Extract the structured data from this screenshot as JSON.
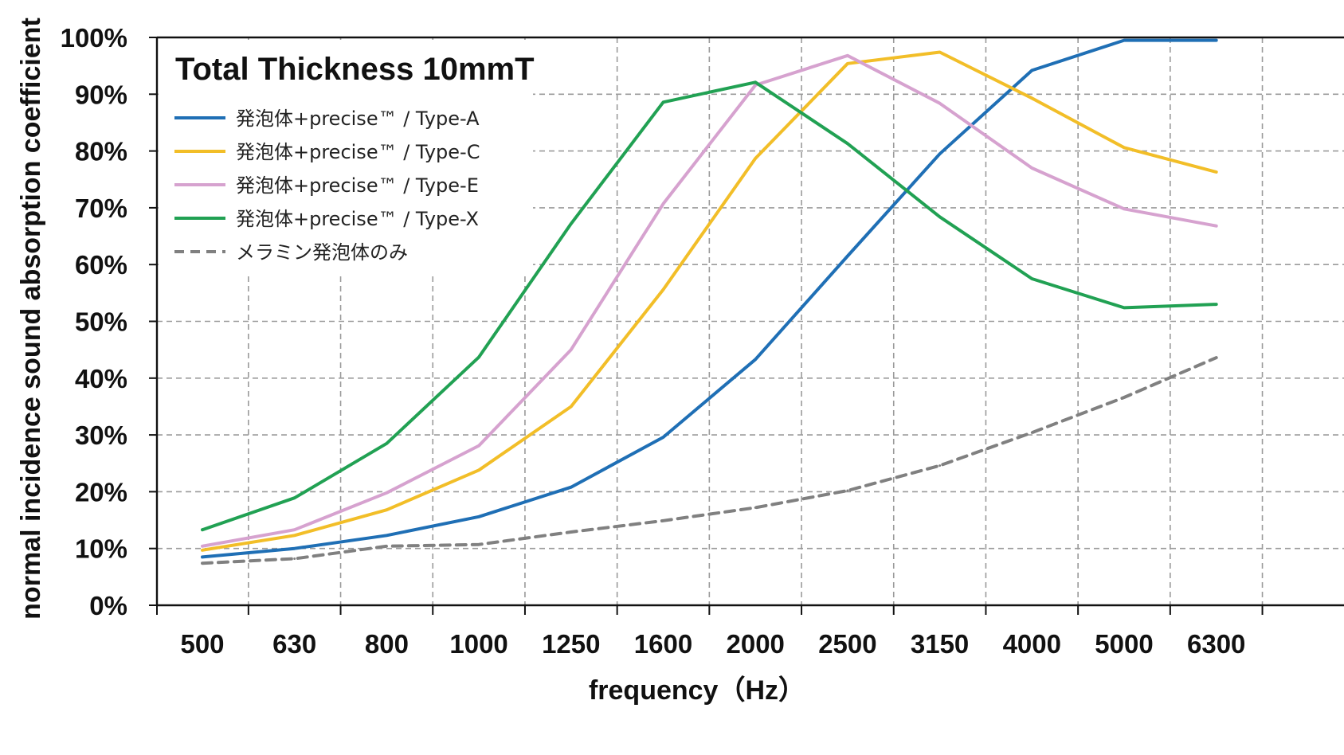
{
  "chart_data": {
    "type": "line",
    "title": "Total Thickness 10mmT",
    "xlabel": "frequency（Hz）",
    "ylabel": "normal incidence sound absorption coefficient",
    "categories": [
      "500",
      "630",
      "800",
      "1000",
      "1250",
      "1600",
      "2000",
      "2500",
      "3150",
      "4000",
      "5000",
      "6300"
    ],
    "y_ticks": [
      "0%",
      "10%",
      "20%",
      "30%",
      "40%",
      "50%",
      "60%",
      "70%",
      "80%",
      "90%",
      "100%"
    ],
    "ylim": [
      0,
      100
    ],
    "grid": true,
    "legend_position": "top-left",
    "series": [
      {
        "name": "発泡体+precise™ / Type-A",
        "color": "#1f6fb5",
        "dashed": false,
        "values": [
          8.5,
          10,
          12.3,
          15.6,
          20.8,
          29.6,
          43.3,
          61.5,
          79.5,
          94.2,
          99.5,
          99.5
        ]
      },
      {
        "name": "発泡体+precise™ / Type-C",
        "color": "#f2be28",
        "dashed": false,
        "values": [
          9.7,
          12.3,
          16.8,
          23.8,
          35,
          55.6,
          78.7,
          95.4,
          97.4,
          89.3,
          80.6,
          76.3
        ]
      },
      {
        "name": "発泡体+precise™ / Type-E",
        "color": "#d6a2cf",
        "dashed": false,
        "values": [
          10.4,
          13.3,
          19.8,
          28.1,
          45,
          70.7,
          91.6,
          96.8,
          88.4,
          77,
          69.8,
          66.8
        ]
      },
      {
        "name": "発泡体+precise™ / Type-X",
        "color": "#21a153",
        "dashed": false,
        "values": [
          13.3,
          18.9,
          28.5,
          43.7,
          67.2,
          88.6,
          92.1,
          81.3,
          68.4,
          57.5,
          52.4,
          53
        ]
      },
      {
        "name": "メラミン発泡体のみ",
        "color": "#808080",
        "dashed": true,
        "values": [
          7.4,
          8.2,
          10.4,
          10.7,
          12.9,
          14.9,
          17.2,
          20.2,
          24.6,
          30.4,
          36.6,
          43.6
        ]
      }
    ]
  }
}
